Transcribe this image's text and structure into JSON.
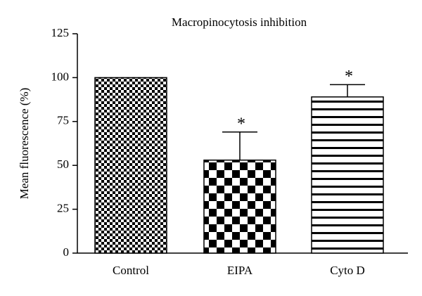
{
  "chart_data": {
    "type": "bar",
    "title": "Macropinocytosis inhibition",
    "y_label": "Mean fluorescence (%)",
    "categories": [
      "Control",
      "EIPA",
      "Cyto D"
    ],
    "values": [
      100,
      53,
      89
    ],
    "errors": [
      0,
      16,
      7
    ],
    "annotations": [
      null,
      "*",
      "*"
    ],
    "ylim": [
      0,
      125
    ],
    "yticks": [
      0,
      25,
      50,
      75,
      100,
      125
    ]
  }
}
